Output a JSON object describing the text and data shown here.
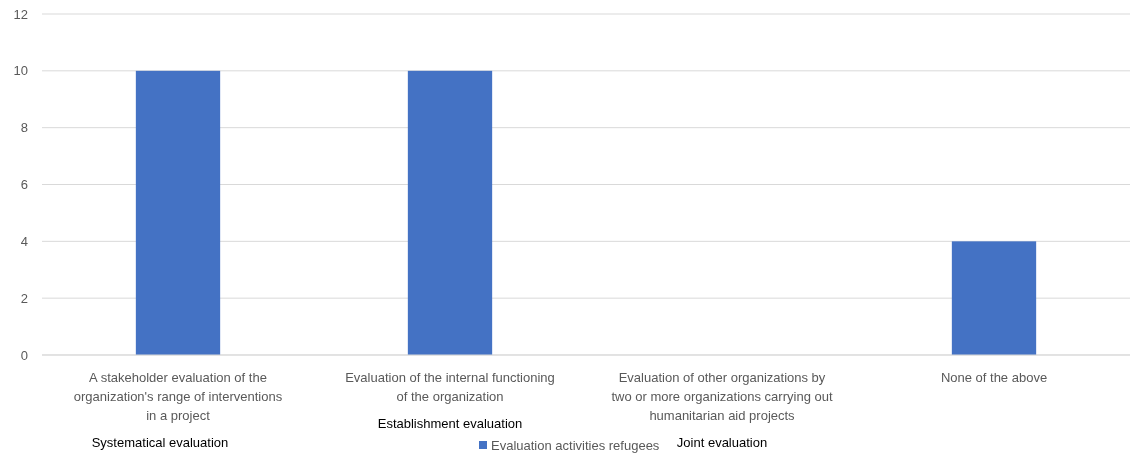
{
  "chart_data": {
    "type": "bar",
    "categories": [
      "A stakeholder evaluation of the organization's range of interventions in a project",
      "Evaluation of the internal functioning of the organization",
      "Evaluation of other organizations by two or more organizations carrying out humanitarian aid projects",
      "None of the above"
    ],
    "series": [
      {
        "name": "Evaluation activities refugees",
        "color": "#4472c4",
        "values": [
          10,
          10,
          0,
          4
        ]
      }
    ],
    "ylim": [
      0,
      12
    ],
    "yticks": [
      0,
      2,
      4,
      6,
      8,
      10,
      12
    ],
    "grid": "y",
    "legend": "bottom",
    "annotations": [
      "Systematical evaluation",
      "Establishment evaluation",
      "Joint evaluation"
    ]
  }
}
